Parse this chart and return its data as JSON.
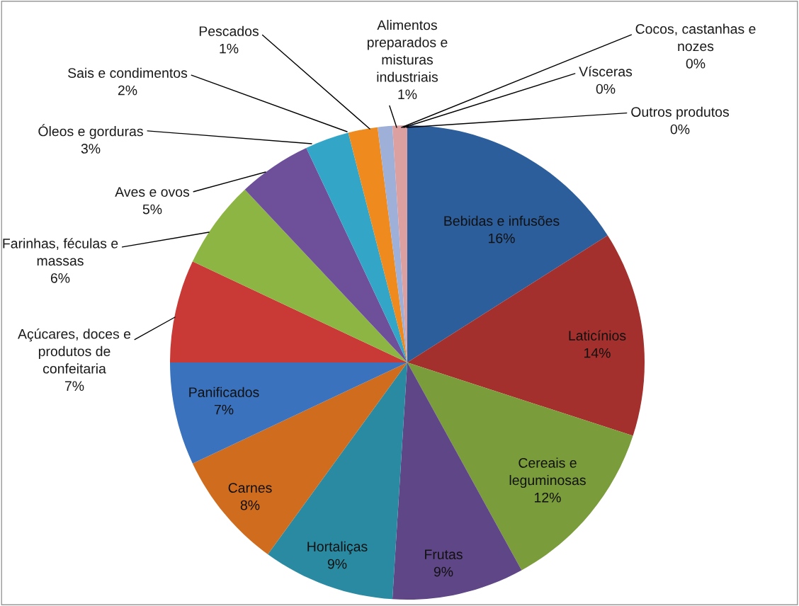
{
  "chart_data": {
    "type": "pie",
    "categories": [
      "Bebidas e infusões",
      "Laticínios",
      "Cereais e leguminosas",
      "Frutas",
      "Hortaliças",
      "Carnes",
      "Panificados",
      "Açúcares, doces e produtos de confeitaria",
      "Farinhas, féculas e massas",
      "Aves e ovos",
      "Óleos e gorduras",
      "Sais e condimentos",
      "Pescados",
      "Alimentos preparados e misturas industriais",
      "Cocos, castanhas e nozes",
      "Vísceras",
      "Outros produtos"
    ],
    "values": [
      16,
      14,
      12,
      9,
      9,
      8,
      7,
      7,
      6,
      5,
      3,
      2,
      1,
      1,
      0,
      0,
      0
    ],
    "value_labels": [
      "16%",
      "14%",
      "12%",
      "9%",
      "9%",
      "8%",
      "7%",
      "7%",
      "6%",
      "5%",
      "3%",
      "2%",
      "1%",
      "1%",
      "0%",
      "0%",
      "0%"
    ],
    "colors": [
      "#2d5e9c",
      "#a3302c",
      "#7a9c3a",
      "#5f4686",
      "#2a8aa2",
      "#d06c1e",
      "#3a72be",
      "#c93a36",
      "#8cb543",
      "#6e4f9a",
      "#33a6c8",
      "#ef8a1e",
      "#9fb0d8",
      "#dca0a0",
      "#c5d89a",
      "#b9a9cf",
      "#9fc6d8"
    ]
  }
}
